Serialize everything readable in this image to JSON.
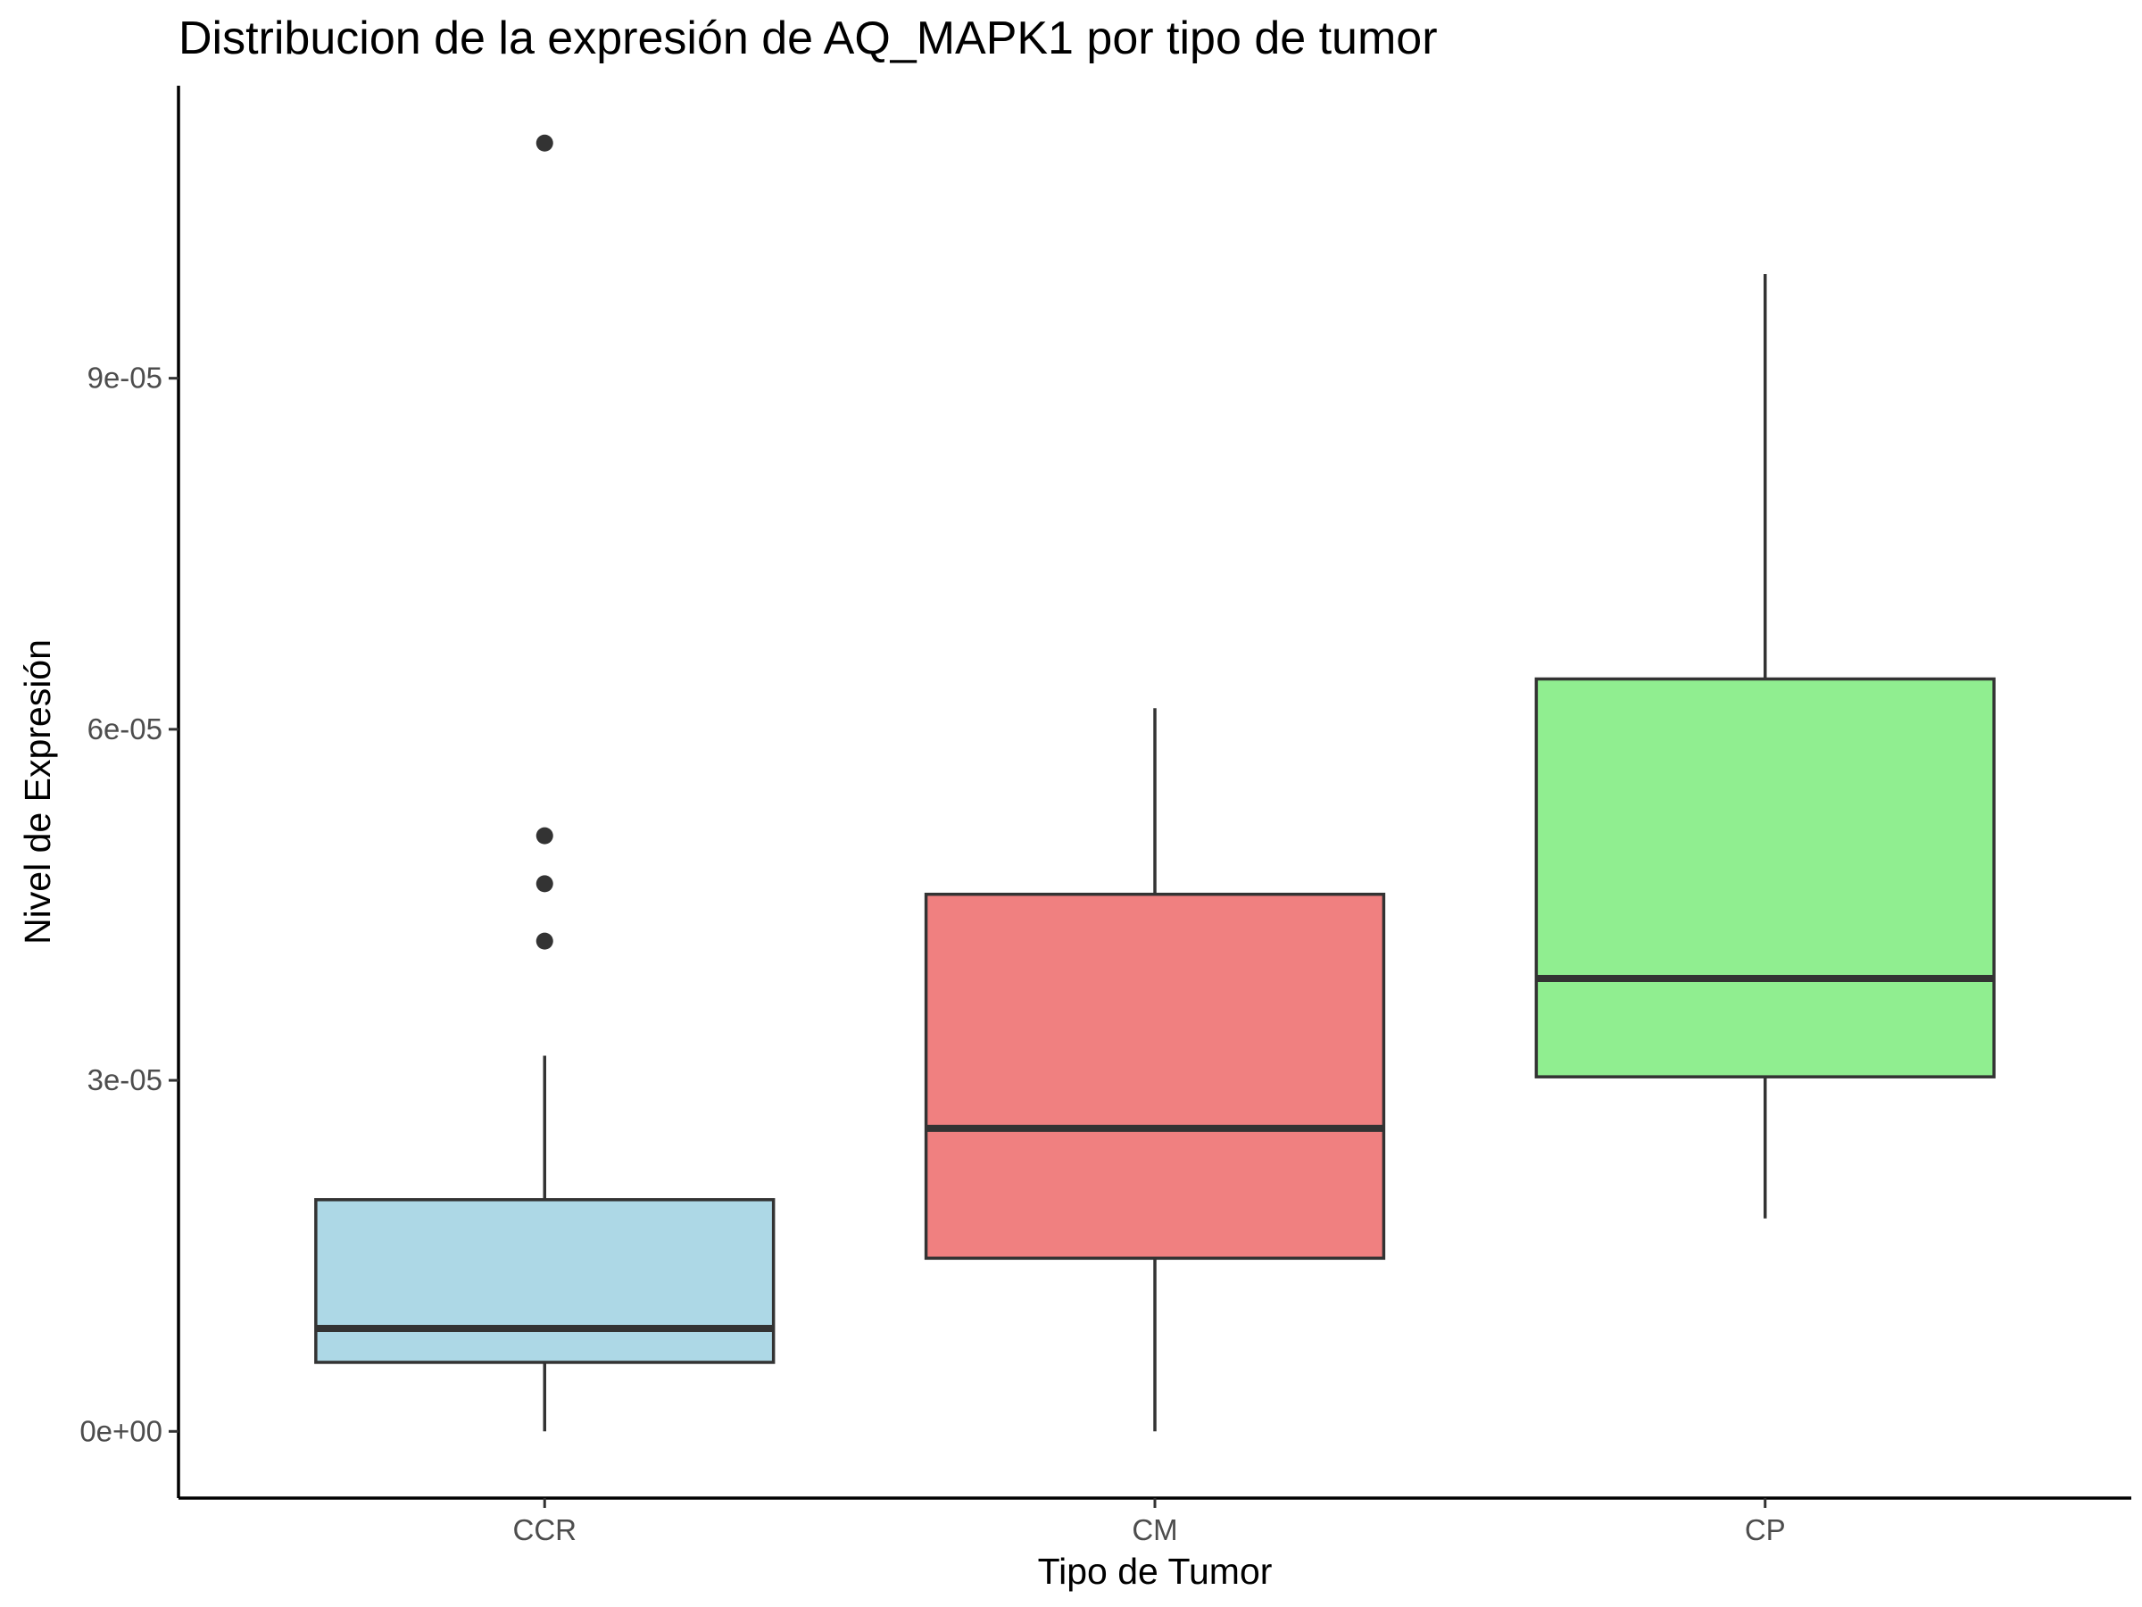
{
  "chart_data": {
    "type": "boxplot",
    "title": "Distribucion de la expresión de AQ_MAPK1 por tipo de tumor",
    "xlabel": "Tipo de Tumor",
    "ylabel": "Nivel de Expresión",
    "ylim": [
      -5.7e-06,
      0.000115
    ],
    "y_ticks": [
      0,
      3e-05,
      6e-05,
      9e-05
    ],
    "y_tick_labels": [
      "0e+00",
      "3e-05",
      "6e-05",
      "9e-05"
    ],
    "categories": [
      "CCR",
      "CM",
      "CP"
    ],
    "grid": false,
    "legend": "none",
    "boxes": [
      {
        "category": "CCR",
        "fill": "#add8e6",
        "whisker_low": 0.0,
        "q1": 5.9e-06,
        "median": 8.8e-06,
        "q3": 1.98e-05,
        "whisker_high": 3.21e-05,
        "outliers": [
          4.19e-05,
          4.68e-05,
          5.09e-05,
          0.0001101
        ]
      },
      {
        "category": "CM",
        "fill": "#f08080",
        "whisker_low": 0.0,
        "q1": 1.48e-05,
        "median": 2.59e-05,
        "q3": 4.59e-05,
        "whisker_high": 6.18e-05,
        "outliers": []
      },
      {
        "category": "CP",
        "fill": "#90ee90",
        "whisker_low": 1.82e-05,
        "q1": 3.03e-05,
        "median": 3.87e-05,
        "q3": 6.43e-05,
        "whisker_high": 9.89e-05,
        "outliers": []
      }
    ]
  }
}
